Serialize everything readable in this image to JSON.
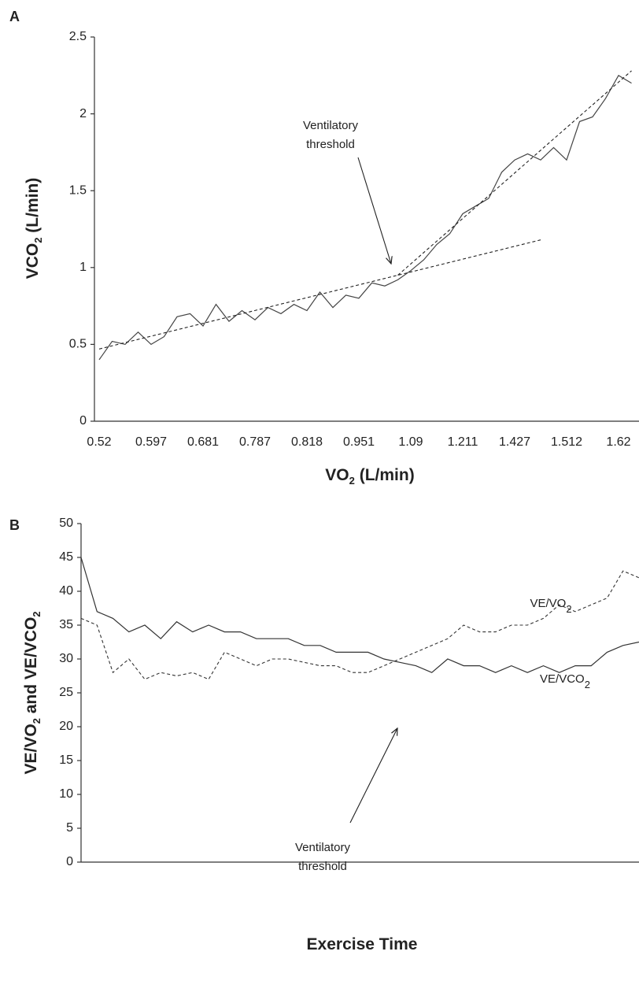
{
  "chart_data": [
    {
      "type": "line",
      "panel": "A",
      "xlabel": [
        "VO",
        "2",
        " (L/min)"
      ],
      "ylabel": [
        "VCO",
        "2",
        " (L/min)"
      ],
      "categories": [
        "0.52",
        null,
        null,
        null,
        "0.597",
        null,
        null,
        null,
        "0.681",
        null,
        null,
        null,
        "0.787",
        null,
        null,
        null,
        "0.818",
        null,
        null,
        null,
        "0.951",
        null,
        null,
        null,
        "1.09",
        null,
        null,
        null,
        "1.211",
        null,
        null,
        null,
        "1.427",
        null,
        null,
        null,
        "1.512",
        null,
        null,
        null,
        "1.62",
        null
      ],
      "ylim": [
        0,
        2.5
      ],
      "yticks": [
        0,
        0.5,
        1,
        1.5,
        2,
        2.5
      ],
      "series": [
        {
          "color": "#444",
          "values": [
            0.4,
            0.52,
            0.5,
            0.58,
            0.5,
            0.55,
            0.68,
            0.7,
            0.62,
            0.76,
            0.65,
            0.72,
            0.66,
            0.74,
            0.7,
            0.76,
            0.72,
            0.84,
            0.74,
            0.82,
            0.8,
            0.9,
            0.88,
            0.92,
            0.98,
            1.05,
            1.15,
            1.22,
            1.35,
            1.4,
            1.45,
            1.62,
            1.7,
            1.74,
            1.7,
            1.78,
            1.7,
            1.95,
            1.98,
            2.1,
            2.25,
            2.2
          ]
        },
        {
          "color": "#222",
          "dash": true,
          "x": [
            0,
            34
          ],
          "values": [
            0.47,
            1.18
          ]
        },
        {
          "color": "#222",
          "dash": true,
          "x": [
            23,
            41
          ],
          "values": [
            0.95,
            2.28
          ]
        }
      ],
      "annotations": [
        {
          "lines": [
            "Ventilatory",
            "threshold"
          ]
        }
      ]
    },
    {
      "type": "line",
      "panel": "B",
      "xlabel": [
        "Exercise Time"
      ],
      "ylabel": [
        "VE/VO",
        "2",
        " and VE/VCO",
        "2"
      ],
      "categories": [
        null,
        null,
        null,
        null,
        null,
        null,
        null,
        null,
        null,
        null,
        null,
        null,
        null,
        null,
        null,
        null,
        null,
        null,
        null,
        null,
        null,
        null,
        null,
        null,
        null,
        null,
        null,
        null,
        null,
        null,
        null,
        null,
        null,
        null,
        null,
        null
      ],
      "ylim": [
        0,
        50
      ],
      "yticks": [
        0,
        5,
        10,
        15,
        20,
        25,
        30,
        35,
        40,
        45,
        50
      ],
      "series": [
        {
          "name": [
            "VE/VCO",
            "2"
          ],
          "color": "#333",
          "values": [
            45,
            37,
            36,
            34,
            35,
            33,
            35.5,
            34,
            35,
            34,
            34,
            33,
            33,
            33,
            32,
            32,
            31,
            31,
            31,
            30,
            29.5,
            29,
            28,
            30,
            29,
            29,
            28,
            29,
            28,
            29,
            28,
            29,
            29,
            31,
            32,
            32.5
          ]
        },
        {
          "name": [
            "VE/VO",
            "2"
          ],
          "color": "#333",
          "dash": true,
          "values": [
            36,
            35,
            28,
            30,
            27,
            28,
            27.5,
            28,
            27,
            31,
            30,
            29,
            30,
            30,
            29.5,
            29,
            29,
            28,
            28,
            29,
            30,
            31,
            32,
            33,
            35,
            34,
            34,
            35,
            35,
            36,
            38,
            37,
            38,
            39,
            43,
            42
          ]
        }
      ],
      "annotations": [
        {
          "lines": [
            "Ventilatory",
            "threshold"
          ]
        }
      ]
    }
  ]
}
